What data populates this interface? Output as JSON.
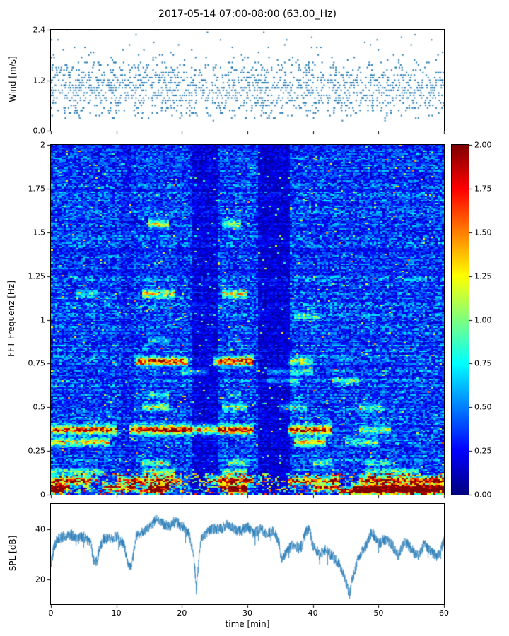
{
  "title": "2017-05-14 07:00-08:00 (63.00_Hz)",
  "chart_data": [
    {
      "type": "scatter",
      "name": "wind-speed",
      "ylabel": "Wind [m/s]",
      "ylim": [
        0,
        2.4
      ],
      "ytick_values": [
        0,
        1.2,
        2.4
      ],
      "ytick_labels": [
        "0.0",
        "1.2",
        "2.4"
      ],
      "xlim": [
        0,
        60
      ],
      "marker_color": "#1f77b4",
      "n_points": 1700,
      "y_mean": 1.0,
      "y_sd": 0.34,
      "y_min": 0.15,
      "y_max": 2.4,
      "y_quantization": 0.06,
      "x_quantization": 0.1,
      "gust_probability": 0.04,
      "seed": 7
    },
    {
      "type": "heatmap",
      "name": "fft-spectrogram",
      "ylabel": "FFT Frequenz [Hz]",
      "ylim": [
        0,
        2
      ],
      "ytick_values": [
        0,
        0.25,
        0.5,
        0.75,
        1,
        1.25,
        1.5,
        1.75,
        2
      ],
      "ytick_labels": [
        "0",
        "0.25",
        "0.5",
        "0.75",
        "1",
        "1.25",
        "1.5",
        "1.75",
        "2"
      ],
      "xlim": [
        0,
        60
      ],
      "colormap": "jet",
      "value_range": [
        0,
        2
      ],
      "seed": 99,
      "background_base": 0.1,
      "background_noise": 0.55,
      "colorbar": {
        "tick_values": [
          0,
          0.25,
          0.5,
          0.75,
          1,
          1.25,
          1.5,
          1.75,
          2
        ],
        "tick_labels": [
          "0.00",
          "0.25",
          "0.50",
          "0.75",
          "1.00",
          "1.25",
          "1.50",
          "1.75",
          "2.00"
        ]
      },
      "dark_time_intervals": [
        [
          21.5,
          25.5,
          0.55
        ],
        [
          31.5,
          36.5,
          0.5
        ],
        [
          10.8,
          12.5,
          0.8
        ]
      ],
      "low_freq_noise": {
        "fmax": 0.12,
        "probability": 0.3,
        "amp_range": [
          0.3,
          1.5
        ]
      },
      "bands": [
        {
          "freq": 0.02,
          "width": 0.012,
          "strength": 2.0,
          "intervals": [
            [
              0,
              2,
              0.8
            ],
            [
              14,
              17,
              0.7
            ],
            [
              27,
              30,
              0.7
            ],
            [
              44,
              60,
              1
            ]
          ]
        },
        {
          "freq": 0.04,
          "width": 0.012,
          "strength": 1.9,
          "intervals": [
            [
              0,
              3,
              1
            ],
            [
              8,
              13,
              0.8
            ],
            [
              15,
              18,
              1
            ],
            [
              26,
              30,
              0.9
            ],
            [
              40,
              44,
              0.8
            ],
            [
              46,
              60,
              1
            ]
          ]
        },
        {
          "freq": 0.08,
          "width": 0.015,
          "strength": 1.6,
          "intervals": [
            [
              0,
              6,
              1
            ],
            [
              10,
              20,
              0.9
            ],
            [
              24,
              31,
              1
            ],
            [
              36,
              44,
              0.8
            ],
            [
              47,
              60,
              1
            ]
          ]
        },
        {
          "freq": 0.13,
          "width": 0.012,
          "strength": 1.0,
          "intervals": [
            [
              0,
              8,
              0.7
            ],
            [
              14,
              19,
              0.8
            ],
            [
              26,
              30,
              0.8
            ],
            [
              48,
              56,
              0.7
            ]
          ]
        },
        {
          "freq": 0.18,
          "width": 0.012,
          "strength": 0.8,
          "intervals": [
            [
              14,
              18,
              0.9
            ],
            [
              27,
              30,
              0.8
            ],
            [
              40,
              43,
              0.7
            ],
            [
              48,
              52,
              0.6
            ]
          ]
        },
        {
          "freq": 0.3,
          "width": 0.015,
          "strength": 1.1,
          "intervals": [
            [
              0,
              9,
              0.9
            ],
            [
              37,
              42,
              1.0
            ],
            [
              45,
              50,
              0.5
            ]
          ]
        },
        {
          "freq": 0.37,
          "width": 0.016,
          "strength": 1.9,
          "intervals": [
            [
              0,
              10,
              0.85
            ],
            [
              12,
              31,
              1
            ],
            [
              36,
              43,
              0.95
            ],
            [
              47,
              52,
              0.4
            ]
          ]
        },
        {
          "freq": 0.5,
          "width": 0.014,
          "strength": 0.9,
          "intervals": [
            [
              14,
              18,
              1
            ],
            [
              26,
              30,
              0.9
            ],
            [
              35,
              39,
              0.7
            ],
            [
              47,
              51,
              0.6
            ]
          ]
        },
        {
          "freq": 0.57,
          "width": 0.012,
          "strength": 0.7,
          "intervals": [
            [
              15,
              18,
              0.9
            ],
            [
              27,
              29,
              0.7
            ]
          ]
        },
        {
          "freq": 0.65,
          "width": 0.012,
          "strength": 0.7,
          "intervals": [
            [
              33,
              38,
              0.8
            ],
            [
              43,
              47,
              0.9
            ]
          ]
        },
        {
          "freq": 0.7,
          "width": 0.012,
          "strength": 0.8,
          "intervals": [
            [
              20,
              24,
              0.6
            ],
            [
              33,
              40,
              0.7
            ]
          ]
        },
        {
          "freq": 0.76,
          "width": 0.016,
          "strength": 1.5,
          "intervals": [
            [
              13,
              21,
              1
            ],
            [
              25,
              31,
              1.1
            ],
            [
              36,
              40,
              0.5
            ]
          ]
        },
        {
          "freq": 0.88,
          "width": 0.012,
          "strength": 0.5,
          "intervals": [
            [
              15,
              18,
              0.8
            ],
            [
              27,
              29,
              0.7
            ]
          ]
        },
        {
          "freq": 1.02,
          "width": 0.014,
          "strength": 0.6,
          "intervals": [
            [
              37,
              41,
              0.9
            ]
          ]
        },
        {
          "freq": 1.15,
          "width": 0.016,
          "strength": 1.0,
          "intervals": [
            [
              14,
              19,
              1
            ],
            [
              26,
              30,
              0.95
            ],
            [
              4,
              7,
              0.4
            ]
          ]
        },
        {
          "freq": 1.55,
          "width": 0.016,
          "strength": 0.9,
          "intervals": [
            [
              15,
              18,
              1
            ],
            [
              26,
              29,
              0.9
            ]
          ]
        },
        {
          "freq": 1.9,
          "width": 0.01,
          "strength": 0.3,
          "intervals": [
            [
              15,
              17,
              0.6
            ]
          ]
        }
      ]
    },
    {
      "type": "line",
      "name": "spl",
      "ylabel": "SPL [dB]",
      "xlabel": "time [min]",
      "ylim": [
        10,
        50
      ],
      "ytick_values": [
        20,
        40
      ],
      "ytick_labels": [
        "20",
        "40"
      ],
      "xlim": [
        0,
        60
      ],
      "xtick_values": [
        0,
        10,
        20,
        30,
        40,
        50,
        60
      ],
      "xtick_labels": [
        "0",
        "10",
        "20",
        "30",
        "40",
        "50",
        "60"
      ],
      "color": "#1f77b4",
      "noise_amp": 2.2,
      "samples": 2400,
      "seed": 5,
      "points": [
        [
          0,
          26
        ],
        [
          0.5,
          33
        ],
        [
          1,
          36
        ],
        [
          2,
          37
        ],
        [
          3,
          38
        ],
        [
          4,
          36
        ],
        [
          5,
          37
        ],
        [
          6,
          35
        ],
        [
          6.5,
          28
        ],
        [
          7,
          27
        ],
        [
          7.5,
          33
        ],
        [
          8,
          36
        ],
        [
          9,
          36
        ],
        [
          10,
          37
        ],
        [
          11,
          35
        ],
        [
          11.8,
          26
        ],
        [
          12.3,
          25
        ],
        [
          13,
          37
        ],
        [
          14,
          39
        ],
        [
          15,
          40
        ],
        [
          16,
          44
        ],
        [
          17,
          42
        ],
        [
          18,
          41
        ],
        [
          19,
          43
        ],
        [
          20,
          41
        ],
        [
          21,
          39
        ],
        [
          21.8,
          30
        ],
        [
          22.2,
          16
        ],
        [
          22.6,
          28
        ],
        [
          23,
          37
        ],
        [
          24,
          39
        ],
        [
          25,
          40
        ],
        [
          26,
          40
        ],
        [
          27,
          42
        ],
        [
          28,
          40
        ],
        [
          29,
          39
        ],
        [
          30,
          41
        ],
        [
          31,
          38
        ],
        [
          32,
          40
        ],
        [
          33,
          38
        ],
        [
          34,
          39
        ],
        [
          34.8,
          35
        ],
        [
          35.2,
          28
        ],
        [
          36,
          31
        ],
        [
          37,
          34
        ],
        [
          38,
          32
        ],
        [
          39,
          39
        ],
        [
          39.5,
          40
        ],
        [
          40,
          33
        ],
        [
          41,
          30
        ],
        [
          42,
          32
        ],
        [
          43,
          29
        ],
        [
          44,
          26
        ],
        [
          45,
          19
        ],
        [
          45.6,
          14
        ],
        [
          46,
          20
        ],
        [
          47,
          29
        ],
        [
          48,
          33
        ],
        [
          49,
          39
        ],
        [
          50,
          34
        ],
        [
          51,
          36
        ],
        [
          52,
          34
        ],
        [
          53,
          29
        ],
        [
          54,
          35
        ],
        [
          55,
          32
        ],
        [
          56,
          29
        ],
        [
          57,
          34
        ],
        [
          58,
          31
        ],
        [
          59,
          29
        ],
        [
          60,
          35
        ]
      ]
    }
  ]
}
